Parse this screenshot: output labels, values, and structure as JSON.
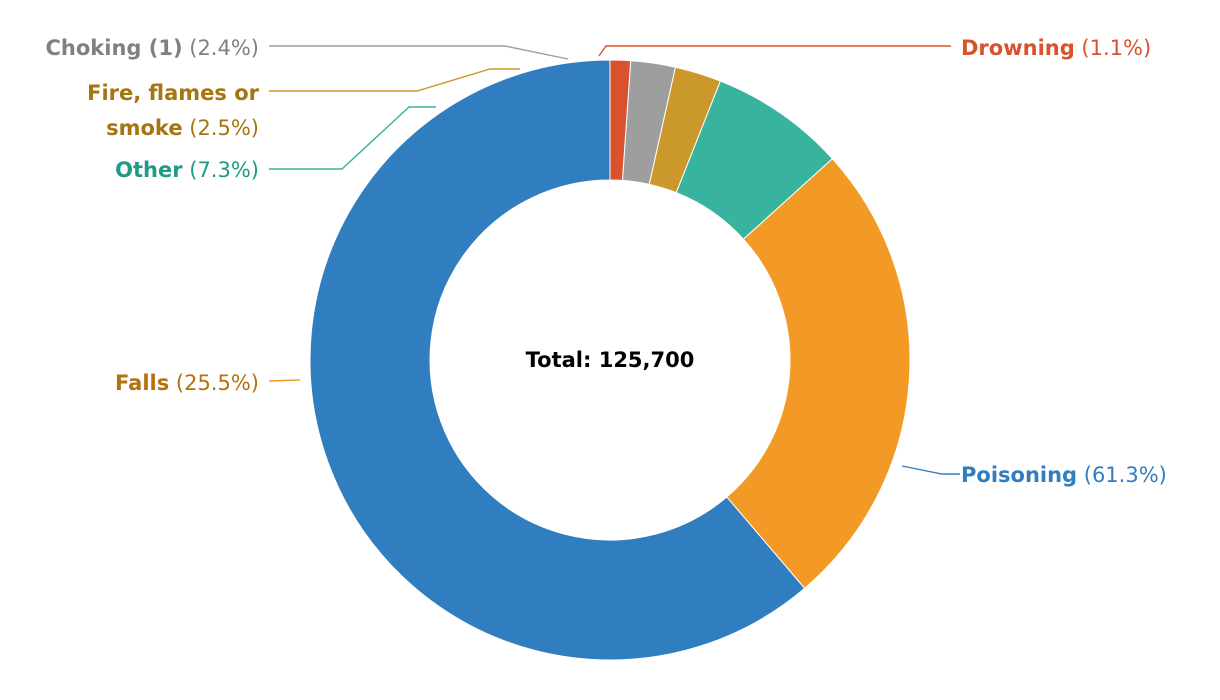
{
  "chart_data": {
    "type": "pie",
    "center_label": "Total: 125,700",
    "slices": [
      {
        "name": "Poisoning",
        "percent_label": "(61.3%)",
        "value": 61.3,
        "color": "#307EBF"
      },
      {
        "name": "Falls",
        "percent_label": "(25.5%)",
        "value": 25.5,
        "color": "#F39A26"
      },
      {
        "name": "Other",
        "percent_label": "(7.3%)",
        "value": 7.3,
        "color": "#37B39E"
      },
      {
        "name": "Fire, flames or smoke",
        "name_lines": [
          "Fire, flames or",
          "smoke"
        ],
        "percent_label": "(2.5%)",
        "value": 2.5,
        "color": "#CB982C"
      },
      {
        "name": "Choking (1)",
        "percent_label": "(2.4%)",
        "value": 2.4,
        "color": "#9E9E9E"
      },
      {
        "name": "Drowning",
        "percent_label": "(1.1%)",
        "value": 1.1,
        "color": "#D8522D"
      }
    ],
    "label_colors": {
      "Poisoning": "#307EBF",
      "Falls": "#B3720E",
      "Other": "#1F9A87",
      "Fire, flames or smoke": "#A67510",
      "Choking (1)": "#808080",
      "Drowning": "#D8522D"
    },
    "legend": "none"
  }
}
